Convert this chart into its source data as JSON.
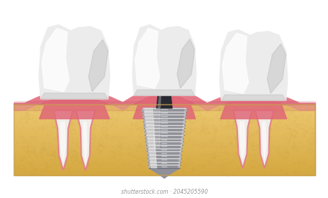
{
  "bg_color": "#ffffff",
  "bone_color": "#E8C070",
  "bone_edge_color": "#C8A050",
  "gum_color": "#E06878",
  "gum_light_color": "#EC8898",
  "gum_dark_color": "#B84858",
  "tooth_white": "#F8F8F8",
  "tooth_light": "#ECECEC",
  "tooth_mid": "#D8D8D8",
  "tooth_shadow": "#B0B0B0",
  "tooth_dark": "#888888",
  "root_white": "#F0EDE8",
  "root_mid": "#D8D4CC",
  "root_dark": "#B8B0A4",
  "implant_light": "#E0E0E0",
  "implant_mid": "#B0B0B8",
  "implant_silver": "#909098",
  "implant_dark": "#505058",
  "implant_darker": "#282830",
  "watermark": "shutterstock.com · 2045205590",
  "figsize": [
    4.63,
    2.8
  ],
  "dpi": 100
}
